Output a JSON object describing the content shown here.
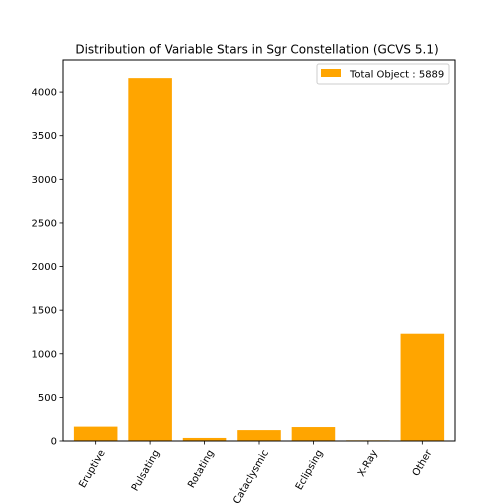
{
  "chart_data": {
    "type": "bar",
    "title": "Distribution of Variable Stars in Sgr Constellation (GCVS 5.1)",
    "xlabel": "",
    "ylabel": "",
    "categories": [
      "Eruptive",
      "Pulsating",
      "Rotating",
      "Cataclysmic",
      "Eclipsing",
      "X-Ray",
      "Other"
    ],
    "series": [
      {
        "name": "Total Object : 5889",
        "values": [
          165,
          4160,
          35,
          125,
          160,
          8,
          1230
        ],
        "color": "#FFA500"
      }
    ],
    "yticks": [
      0,
      500,
      1000,
      1500,
      2000,
      2500,
      3000,
      3500,
      4000
    ],
    "ylim": [
      0,
      4368
    ],
    "grid": false,
    "legend": "top-right"
  }
}
